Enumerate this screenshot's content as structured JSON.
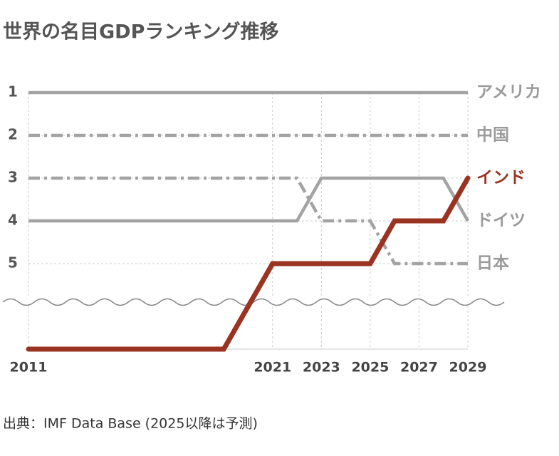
{
  "chart_data": {
    "type": "line",
    "title": "世界の名目GDPランキング推移",
    "source": "出典：IMF Data Base (2025以降は予測)",
    "xlim": [
      2011,
      2029
    ],
    "xticks": [
      2011,
      2021,
      2023,
      2025,
      2027,
      2029
    ],
    "ylim": [
      7,
      1
    ],
    "yticks": [
      1,
      2,
      3,
      4,
      5
    ],
    "grid": true,
    "axis_break": true,
    "series": [
      {
        "name": "アメリカ",
        "color": "#a3a3a3",
        "dash": "solid",
        "x": [
          2011,
          2029
        ],
        "values": [
          1,
          1
        ]
      },
      {
        "name": "中国",
        "color": "#a3a3a3",
        "dash": "dashdot",
        "x": [
          2011,
          2029
        ],
        "values": [
          2,
          2
        ]
      },
      {
        "name": "インド",
        "color": "#9b3322",
        "dash": "solid",
        "x": [
          2011,
          2019,
          2021,
          2025,
          2026,
          2028,
          2029
        ],
        "values": [
          7,
          7,
          5,
          5,
          4,
          4,
          3
        ]
      },
      {
        "name": "ドイツ",
        "color": "#a3a3a3",
        "dash": "solid",
        "x": [
          2011,
          2022,
          2023,
          2028,
          2029
        ],
        "values": [
          4,
          4,
          3,
          3,
          4
        ]
      },
      {
        "name": "日本",
        "color": "#a3a3a3",
        "dash": "dashdot",
        "x": [
          2011,
          2022,
          2023,
          2025,
          2026,
          2029
        ],
        "values": [
          3,
          3,
          4,
          4,
          5,
          5
        ]
      }
    ]
  }
}
